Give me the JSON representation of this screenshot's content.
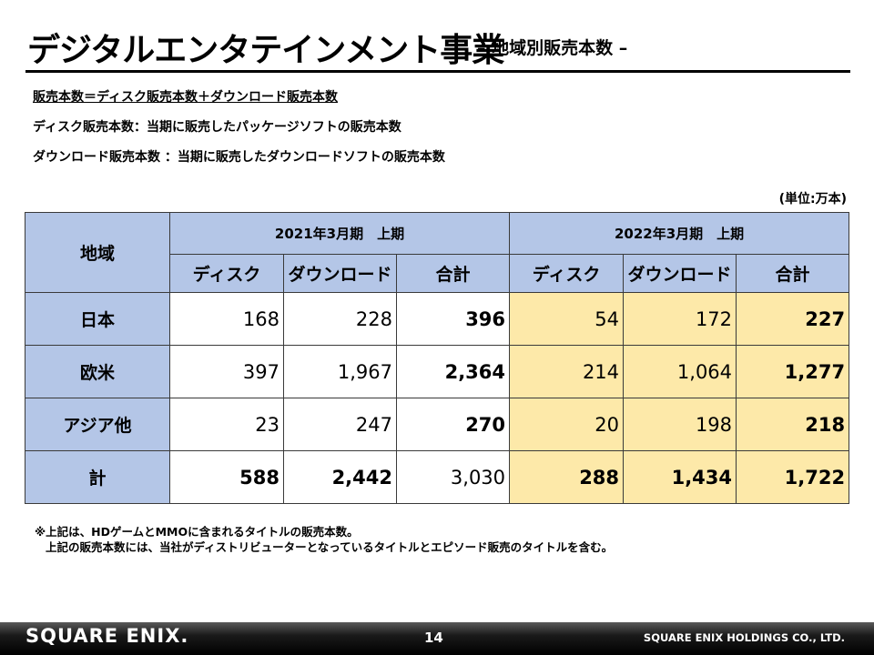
{
  "header": {
    "title": "デジタルエンタテインメント事業",
    "subtitle": "– 地域別販売本数 –"
  },
  "definitions": [
    "販売本数＝ディスク販売本数＋ダウンロード販売本数",
    "ディスク販売本数：当期に販売したパッケージソフトの販売本数",
    "ダウンロード販売本数 ：当期に販売したダウンロードソフトの販売本数"
  ],
  "unit_label": "(単位:万本)",
  "table": {
    "region_header": "地域",
    "periods": [
      "2021年3月期　上期",
      "2022年3月期　上期"
    ],
    "columns": [
      "ディスク",
      "ダウンロード",
      "合計",
      "ディスク",
      "ダウンロード",
      "合計"
    ],
    "rows": [
      {
        "region": "日本",
        "values": [
          "168",
          "228",
          "396",
          "54",
          "172",
          "227"
        ]
      },
      {
        "region": "欧米",
        "values": [
          "397",
          "1,967",
          "2,364",
          "214",
          "1,064",
          "1,277"
        ]
      },
      {
        "region": "アジア他",
        "values": [
          "23",
          "247",
          "270",
          "20",
          "198",
          "218"
        ]
      },
      {
        "region": "計",
        "values": [
          "588",
          "2,442",
          "3,030",
          "288",
          "1,434",
          "1,722"
        ]
      }
    ]
  },
  "notes": [
    "※上記は、HDゲームとMMOに含まれるタイトルの販売本数。",
    "上記の販売本数には、当社がディストリビューターとなっているタイトルとエピソード販売のタイトルを含む。"
  ],
  "footer": {
    "logo": "SQUARE ENIX.",
    "page_number": "14",
    "company": "SQUARE ENIX HOLDINGS CO., LTD."
  },
  "colors": {
    "header_blue": "#b4c6e7",
    "highlight_yellow": "#fde9a9"
  }
}
